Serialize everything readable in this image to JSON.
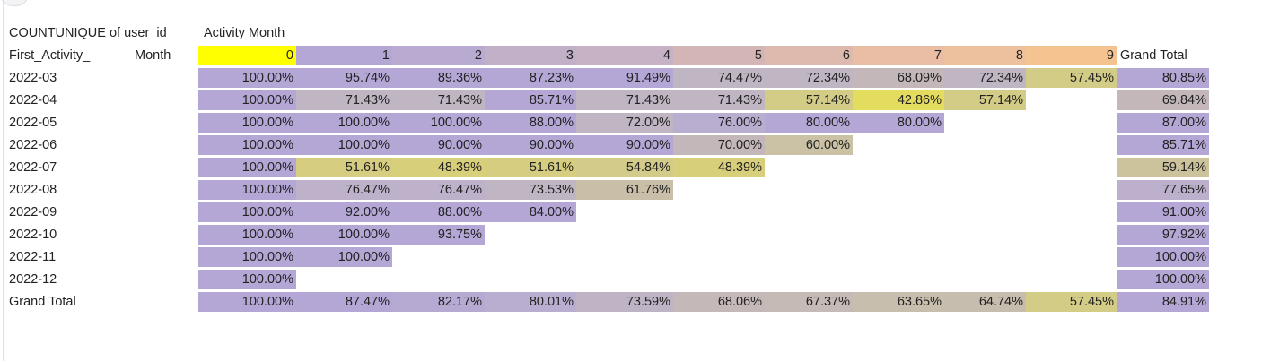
{
  "pivot": {
    "value_header": "COUNTUNIQUE of user_id",
    "column_field_header": "Activity Month_",
    "row_field_header_part1": "First_Activity_",
    "row_field_header_part2": "Month",
    "grand_total_label": "Grand Total",
    "column_labels": [
      "0",
      "1",
      "2",
      "3",
      "4",
      "5",
      "6",
      "7",
      "8",
      "9"
    ],
    "column_label_colors": [
      "#ffff00",
      "#b4a7d6",
      "#b9aad2",
      "#c2b0c8",
      "#c7b1c4",
      "#d4b5b5",
      "#ddbaad",
      "#e9bea4",
      "#edc09e",
      "#f5c38f"
    ],
    "rows": [
      {
        "label": "2022-03",
        "cells": [
          {
            "v": "100.00%",
            "c": "#b4a7d6"
          },
          {
            "v": "95.74%",
            "c": "#b4a7d6"
          },
          {
            "v": "89.36%",
            "c": "#b4a7d6"
          },
          {
            "v": "87.23%",
            "c": "#b4a7d6"
          },
          {
            "v": "91.49%",
            "c": "#b4a7d6"
          },
          {
            "v": "74.47%",
            "c": "#c0b5c3"
          },
          {
            "v": "72.34%",
            "c": "#c0b5c3"
          },
          {
            "v": "68.09%",
            "c": "#c3b7ba"
          },
          {
            "v": "72.34%",
            "c": "#c0b5c3"
          },
          {
            "v": "57.45%",
            "c": "#d3cc87"
          }
        ],
        "total": {
          "v": "80.85%",
          "c": "#b4a7d6"
        }
      },
      {
        "label": "2022-04",
        "cells": [
          {
            "v": "100.00%",
            "c": "#b4a7d6"
          },
          {
            "v": "71.43%",
            "c": "#c0b5c3"
          },
          {
            "v": "71.43%",
            "c": "#c0b5c3"
          },
          {
            "v": "85.71%",
            "c": "#b4a7d6"
          },
          {
            "v": "71.43%",
            "c": "#c0b5c3"
          },
          {
            "v": "71.43%",
            "c": "#c0b5c3"
          },
          {
            "v": "57.14%",
            "c": "#d3cc87"
          },
          {
            "v": "42.86%",
            "c": "#e4dc5f"
          },
          {
            "v": "57.14%",
            "c": "#d3cc87"
          },
          {
            "v": "",
            "c": ""
          }
        ],
        "total": {
          "v": "69.84%",
          "c": "#c3b7ba"
        }
      },
      {
        "label": "2022-05",
        "cells": [
          {
            "v": "100.00%",
            "c": "#b4a7d6"
          },
          {
            "v": "100.00%",
            "c": "#b4a7d6"
          },
          {
            "v": "100.00%",
            "c": "#b4a7d6"
          },
          {
            "v": "88.00%",
            "c": "#b4a7d6"
          },
          {
            "v": "72.00%",
            "c": "#c0b5c3"
          },
          {
            "v": "76.00%",
            "c": "#b9aed0"
          },
          {
            "v": "80.00%",
            "c": "#b4a7d6"
          },
          {
            "v": "80.00%",
            "c": "#b4a7d6"
          },
          {
            "v": "",
            "c": ""
          },
          {
            "v": "",
            "c": ""
          }
        ],
        "total": {
          "v": "87.00%",
          "c": "#b4a7d6"
        }
      },
      {
        "label": "2022-06",
        "cells": [
          {
            "v": "100.00%",
            "c": "#b4a7d6"
          },
          {
            "v": "100.00%",
            "c": "#b4a7d6"
          },
          {
            "v": "90.00%",
            "c": "#b4a7d6"
          },
          {
            "v": "90.00%",
            "c": "#b4a7d6"
          },
          {
            "v": "90.00%",
            "c": "#b4a7d6"
          },
          {
            "v": "70.00%",
            "c": "#c3b7ba"
          },
          {
            "v": "60.00%",
            "c": "#cbc2a5"
          },
          {
            "v": "",
            "c": ""
          },
          {
            "v": "",
            "c": ""
          },
          {
            "v": "",
            "c": ""
          }
        ],
        "total": {
          "v": "85.71%",
          "c": "#b4a7d6"
        }
      },
      {
        "label": "2022-07",
        "cells": [
          {
            "v": "100.00%",
            "c": "#b4a7d6"
          },
          {
            "v": "51.61%",
            "c": "#d6cd80"
          },
          {
            "v": "48.39%",
            "c": "#d8cf7b"
          },
          {
            "v": "51.61%",
            "c": "#d6cd80"
          },
          {
            "v": "54.84%",
            "c": "#d2cb89"
          },
          {
            "v": "48.39%",
            "c": "#d8cf7b"
          },
          {
            "v": "",
            "c": ""
          },
          {
            "v": "",
            "c": ""
          },
          {
            "v": "",
            "c": ""
          },
          {
            "v": "",
            "c": ""
          }
        ],
        "total": {
          "v": "59.14%",
          "c": "#ccc39c"
        }
      },
      {
        "label": "2022-08",
        "cells": [
          {
            "v": "100.00%",
            "c": "#b4a7d6"
          },
          {
            "v": "76.47%",
            "c": "#bdb2c9"
          },
          {
            "v": "76.47%",
            "c": "#bdb2c9"
          },
          {
            "v": "73.53%",
            "c": "#c0b5c3"
          },
          {
            "v": "61.76%",
            "c": "#c9bfa8"
          },
          {
            "v": "",
            "c": ""
          },
          {
            "v": "",
            "c": ""
          },
          {
            "v": "",
            "c": ""
          },
          {
            "v": "",
            "c": ""
          },
          {
            "v": "",
            "c": ""
          }
        ],
        "total": {
          "v": "77.65%",
          "c": "#bcb0cc"
        }
      },
      {
        "label": "2022-09",
        "cells": [
          {
            "v": "100.00%",
            "c": "#b4a7d6"
          },
          {
            "v": "92.00%",
            "c": "#b4a7d6"
          },
          {
            "v": "88.00%",
            "c": "#b4a7d6"
          },
          {
            "v": "84.00%",
            "c": "#b4a7d6"
          },
          {
            "v": "",
            "c": ""
          },
          {
            "v": "",
            "c": ""
          },
          {
            "v": "",
            "c": ""
          },
          {
            "v": "",
            "c": ""
          },
          {
            "v": "",
            "c": ""
          },
          {
            "v": "",
            "c": ""
          }
        ],
        "total": {
          "v": "91.00%",
          "c": "#b4a7d6"
        }
      },
      {
        "label": "2022-10",
        "cells": [
          {
            "v": "100.00%",
            "c": "#b4a7d6"
          },
          {
            "v": "100.00%",
            "c": "#b4a7d6"
          },
          {
            "v": "93.75%",
            "c": "#b4a7d6"
          },
          {
            "v": "",
            "c": ""
          },
          {
            "v": "",
            "c": ""
          },
          {
            "v": "",
            "c": ""
          },
          {
            "v": "",
            "c": ""
          },
          {
            "v": "",
            "c": ""
          },
          {
            "v": "",
            "c": ""
          },
          {
            "v": "",
            "c": ""
          }
        ],
        "total": {
          "v": "97.92%",
          "c": "#b4a7d6"
        }
      },
      {
        "label": "2022-11",
        "cells": [
          {
            "v": "100.00%",
            "c": "#b4a7d6"
          },
          {
            "v": "100.00%",
            "c": "#b4a7d6"
          },
          {
            "v": "",
            "c": ""
          },
          {
            "v": "",
            "c": ""
          },
          {
            "v": "",
            "c": ""
          },
          {
            "v": "",
            "c": ""
          },
          {
            "v": "",
            "c": ""
          },
          {
            "v": "",
            "c": ""
          },
          {
            "v": "",
            "c": ""
          },
          {
            "v": "",
            "c": ""
          }
        ],
        "total": {
          "v": "100.00%",
          "c": "#b4a7d6"
        }
      },
      {
        "label": "2022-12",
        "cells": [
          {
            "v": "100.00%",
            "c": "#b4a7d6"
          },
          {
            "v": "",
            "c": ""
          },
          {
            "v": "",
            "c": ""
          },
          {
            "v": "",
            "c": ""
          },
          {
            "v": "",
            "c": ""
          },
          {
            "v": "",
            "c": ""
          },
          {
            "v": "",
            "c": ""
          },
          {
            "v": "",
            "c": ""
          },
          {
            "v": "",
            "c": ""
          },
          {
            "v": "",
            "c": ""
          }
        ],
        "total": {
          "v": "100.00%",
          "c": "#b4a7d6"
        }
      }
    ],
    "grand_total_row": {
      "label": "Grand Total",
      "cells": [
        {
          "v": "100.00%",
          "c": "#b4a7d6"
        },
        {
          "v": "87.47%",
          "c": "#b4a7d6"
        },
        {
          "v": "82.17%",
          "c": "#b6aad3"
        },
        {
          "v": "80.01%",
          "c": "#b9aed0"
        },
        {
          "v": "73.59%",
          "c": "#bfb4c5"
        },
        {
          "v": "68.06%",
          "c": "#c4b9b8"
        },
        {
          "v": "67.37%",
          "c": "#c5bab5"
        },
        {
          "v": "63.65%",
          "c": "#c8bead"
        },
        {
          "v": "64.74%",
          "c": "#c7bdaf"
        },
        {
          "v": "57.45%",
          "c": "#d3cc87"
        }
      ],
      "total": {
        "v": "84.91%",
        "c": "#b4a7d6"
      }
    }
  }
}
